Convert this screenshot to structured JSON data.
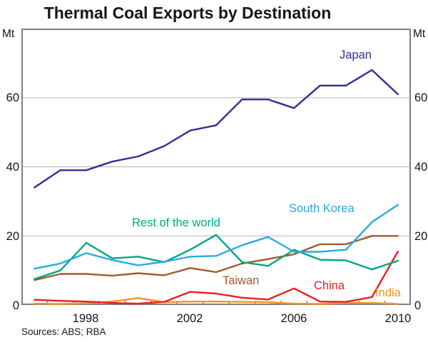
{
  "chart_data": {
    "type": "line",
    "title": "Thermal Coal Exports by Destination",
    "unit": "Mt",
    "source_note": "Sources: ABS; RBA",
    "x": [
      1996,
      1997,
      1998,
      1999,
      2000,
      2001,
      2002,
      2003,
      2004,
      2005,
      2006,
      2007,
      2008,
      2009,
      2010
    ],
    "xtick_labels": [
      "1998",
      "2002",
      "2006",
      "2010"
    ],
    "ytick_labels": [
      "60",
      "40",
      "20",
      "0"
    ],
    "yticks": [
      0,
      20,
      40,
      60
    ],
    "ylim": [
      0,
      80
    ],
    "grid": "horizontal",
    "legend_position": "inline-labels",
    "frame_color": "#7f7f7f",
    "grid_color": "#bfbfbf",
    "series": [
      {
        "name": "Japan",
        "color": "#2e3192",
        "values": [
          34,
          39,
          39,
          41.5,
          43,
          46,
          50.5,
          52,
          59.5,
          59.5,
          57,
          63.5,
          63.5,
          68,
          61
        ]
      },
      {
        "name": "South Korea",
        "color": "#29abe2",
        "values": [
          10.5,
          12,
          15,
          13,
          11.5,
          12.5,
          14,
          14.2,
          17.3,
          19.7,
          15.4,
          15.4,
          16,
          24,
          29
        ]
      },
      {
        "name": "Rest of the world",
        "color": "#00a885",
        "values": [
          7.5,
          10,
          18,
          13.5,
          14,
          12.4,
          16,
          20.3,
          12.4,
          11.3,
          16,
          13.1,
          12.9,
          10.3,
          12.8
        ]
      },
      {
        "name": "Taiwan",
        "color": "#a5592a",
        "values": [
          7.2,
          9,
          9,
          8.5,
          9.2,
          8.6,
          10.7,
          9.5,
          12,
          13.3,
          14.7,
          17.6,
          17.6,
          20,
          20
        ]
      },
      {
        "name": "China",
        "color": "#ec1c24",
        "values": [
          1.5,
          1.2,
          1,
          0.6,
          0.4,
          0.9,
          3.8,
          3.3,
          2.1,
          1.6,
          4.8,
          1,
          0.9,
          2.3,
          15.5
        ]
      },
      {
        "name": "India",
        "color": "#f7941d",
        "values": [
          0.4,
          0.3,
          0.5,
          1,
          2,
          0.8,
          1,
          1,
          0.9,
          0.8,
          0.4,
          0.3,
          0.6,
          0.6,
          0.3
        ]
      }
    ]
  }
}
